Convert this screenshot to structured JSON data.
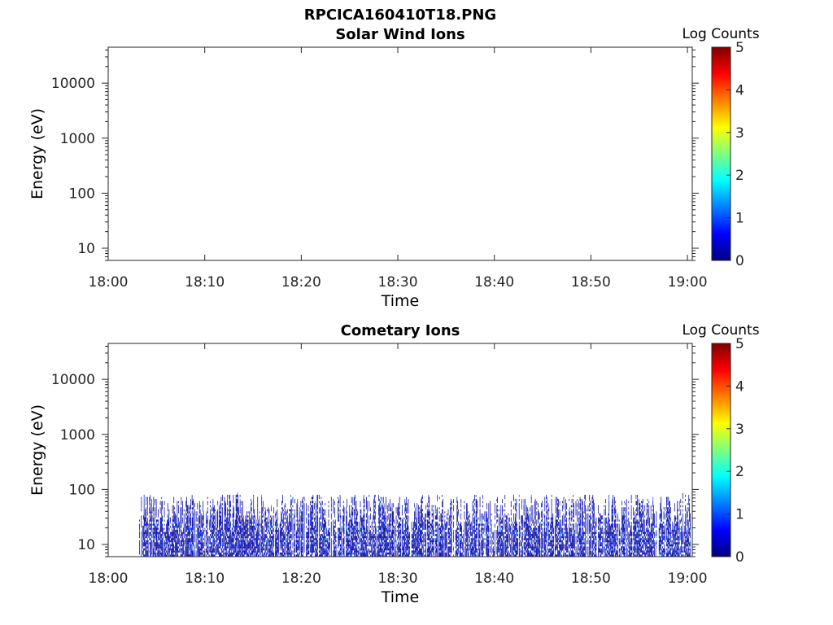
{
  "figure_title": "RPCICA160410T18.PNG",
  "colormap": [
    "#00007f",
    "#0000ff",
    "#007fff",
    "#00ffff",
    "#7fff7f",
    "#ffff00",
    "#ff7f00",
    "#ff0000",
    "#7f0000"
  ],
  "chart_data": [
    {
      "type": "heatmap",
      "title": "Solar Wind Ions",
      "xlabel": "Time",
      "ylabel": "Energy (eV)",
      "x_ticks": [
        "18:00",
        "18:10",
        "18:20",
        "18:30",
        "18:40",
        "18:50",
        "19:00"
      ],
      "x_range_minutes": [
        0,
        60.5
      ],
      "y_scale": "log",
      "y_range": [
        6,
        45000
      ],
      "y_ticks": [
        10,
        100,
        1000,
        10000
      ],
      "y_tick_labels": [
        "10",
        "100",
        "1000",
        "10000"
      ],
      "colorbar": {
        "label": "Log Counts",
        "range": [
          0,
          5
        ],
        "ticks": [
          "0",
          "1",
          "2",
          "3",
          "4",
          "5"
        ]
      },
      "data": {
        "present": false
      }
    },
    {
      "type": "heatmap",
      "title": "Cometary Ions",
      "xlabel": "Time",
      "ylabel": "Energy (eV)",
      "x_ticks": [
        "18:00",
        "18:10",
        "18:20",
        "18:30",
        "18:40",
        "18:50",
        "19:00"
      ],
      "x_range_minutes": [
        0,
        60.5
      ],
      "y_scale": "log",
      "y_range": [
        6,
        45000
      ],
      "y_ticks": [
        10,
        100,
        1000,
        10000
      ],
      "y_tick_labels": [
        "10",
        "100",
        "1000",
        "10000"
      ],
      "colorbar": {
        "label": "Log Counts",
        "range": [
          0,
          5
        ],
        "ticks": [
          "0",
          "1",
          "2",
          "3",
          "4",
          "5"
        ]
      },
      "data": {
        "present": true,
        "time_start_min": 3.2,
        "time_end_min": 60.3,
        "energy_min_eV": 6,
        "energy_max_eV": 80,
        "typical_log_counts": [
          0,
          1.8
        ],
        "dominant_log_counts": 0.3
      }
    }
  ]
}
